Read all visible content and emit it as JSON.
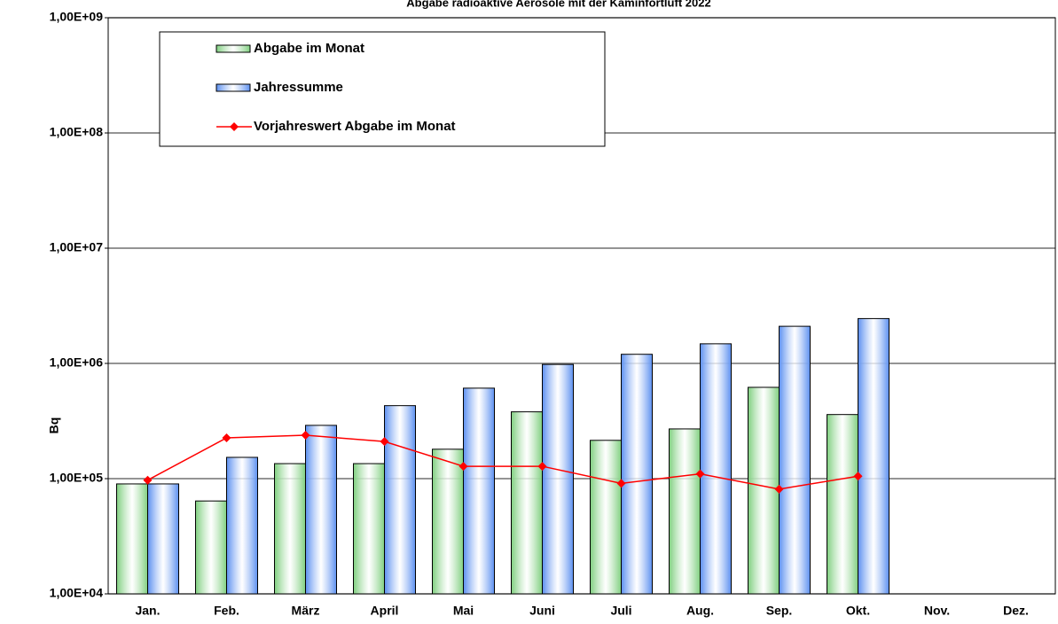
{
  "chart_data": {
    "type": "bar",
    "title": "Abgabe radioaktive Aerosole mit der Kaminfortluft 2022",
    "y_label": "Bq",
    "log_scale": true,
    "grid": true,
    "legend_position": "upper left",
    "categories": [
      "Jan.",
      "Feb.",
      "März",
      "April",
      "Mai",
      "Juni",
      "Juli",
      "Aug.",
      "Sep.",
      "Okt.",
      "Nov.",
      "Dez."
    ],
    "ylim": [
      10000,
      1000000000
    ],
    "yticks": [
      {
        "value": 10000,
        "label": "1,00E+04"
      },
      {
        "value": 100000,
        "label": "1,00E+05"
      },
      {
        "value": 1000000,
        "label": "1,00E+06"
      },
      {
        "value": 10000000,
        "label": "1,00E+07"
      },
      {
        "value": 100000000,
        "label": "1,00E+08"
      },
      {
        "value": 1000000000,
        "label": "1,00E+09"
      }
    ],
    "series": [
      {
        "name": "Abgabe im Monat",
        "type": "bar",
        "color": "#7fcf7f",
        "values": [
          90000,
          64000,
          135000,
          135000,
          180000,
          380000,
          215000,
          270000,
          620000,
          360000,
          null,
          null
        ]
      },
      {
        "name": "Jahressumme",
        "type": "bar",
        "color": "#5b8ff0",
        "values": [
          90000,
          153000,
          290000,
          430000,
          610000,
          980000,
          1200000,
          1480000,
          2100000,
          2450000,
          null,
          null
        ]
      },
      {
        "name": "Vorjahreswert Abgabe im Monat",
        "type": "line",
        "color": "#ff0000",
        "values": [
          97000,
          226000,
          238000,
          210000,
          128000,
          128000,
          91000,
          110000,
          81000,
          105000,
          null,
          null
        ]
      }
    ]
  }
}
